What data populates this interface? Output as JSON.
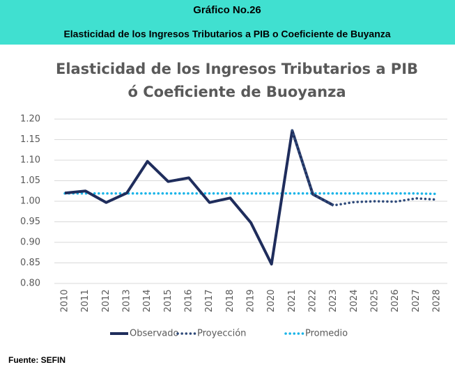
{
  "header": {
    "label": "Gráfico No.26",
    "title": "Elasticidad de los Ingresos Tributarios a PIB o Coeficiente de Buyanza"
  },
  "chart_data": {
    "type": "line",
    "title": [
      "Elasticidad de los Ingresos Tributarios a PIB",
      "ó Coeficiente de Buoyanza"
    ],
    "categories": [
      "2010",
      "2011",
      "2012",
      "2013",
      "2014",
      "2015",
      "2016",
      "2017",
      "2018",
      "2019",
      "2020",
      "2021",
      "2022",
      "2023",
      "2024",
      "2025",
      "2026",
      "2027",
      "2028"
    ],
    "series": [
      {
        "name": "Observado",
        "color": "#1f2d5c",
        "style": "solid",
        "values": [
          1.02,
          1.025,
          0.997,
          1.02,
          1.097,
          1.048,
          1.057,
          0.997,
          1.008,
          0.948,
          0.847,
          1.172,
          1.017,
          0.99,
          null,
          null,
          null,
          null,
          null
        ]
      },
      {
        "name": "Proyección",
        "color": "#2f4a7a",
        "style": "dotted",
        "values": [
          null,
          null,
          null,
          null,
          null,
          null,
          null,
          null,
          null,
          null,
          null,
          1.172,
          1.017,
          0.99,
          0.998,
          1.0,
          0.999,
          1.007,
          1.004
        ]
      },
      {
        "name": "Promedio",
        "color": "#19b4e8",
        "style": "dotted",
        "values": [
          1.019,
          1.019,
          1.019,
          1.019,
          1.019,
          1.019,
          1.019,
          1.019,
          1.019,
          1.019,
          1.019,
          1.019,
          1.019,
          1.019,
          1.019,
          1.019,
          1.019,
          1.019,
          1.018
        ]
      }
    ],
    "ylim": [
      0.8,
      1.2
    ],
    "yticks": [
      {
        "value": 0.8,
        "label": "0.80"
      },
      {
        "value": 0.85,
        "label": "0.85"
      },
      {
        "value": 0.9,
        "label": "0.90"
      },
      {
        "value": 0.95,
        "label": "0.95"
      },
      {
        "value": 1.0,
        "label": "1.00"
      },
      {
        "value": 1.05,
        "label": "1.05"
      },
      {
        "value": 1.1,
        "label": "1.10"
      },
      {
        "value": 1.15,
        "label": "1.15"
      },
      {
        "value": 1.2,
        "label": "1.20"
      }
    ],
    "grid": true,
    "legend": "bottom"
  },
  "footer": {
    "source": "Fuente: SEFIN"
  }
}
